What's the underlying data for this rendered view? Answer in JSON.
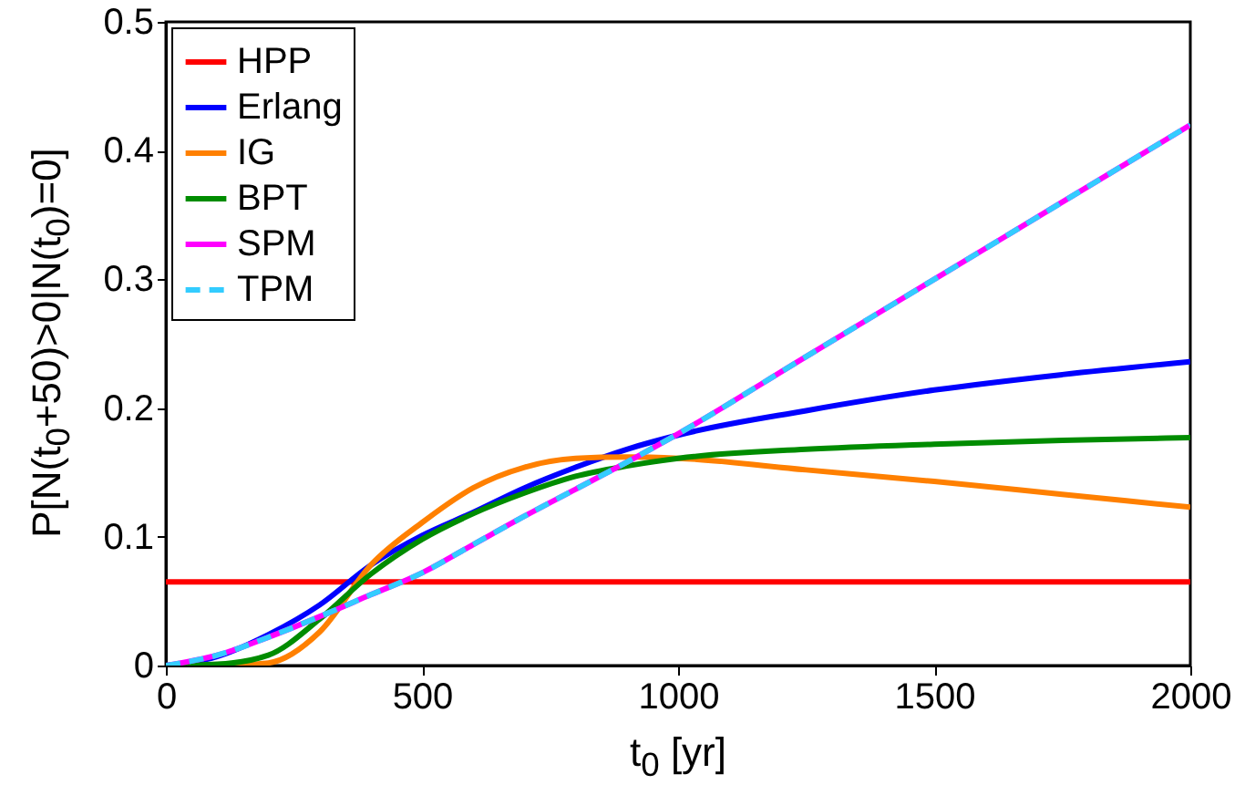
{
  "chart_data": {
    "type": "line",
    "xlabel": "t$_{0}$ [yr]",
    "ylabel": "P[N(t$_{0}$+50)>0|N(t$_{0}$)=0]",
    "x": [
      0,
      100,
      200,
      300,
      400,
      500,
      600,
      700,
      800,
      900,
      1000,
      1250,
      1500,
      1750,
      2000
    ],
    "xlim": [
      0,
      2000
    ],
    "xticks": [
      0,
      500,
      1000,
      1500,
      2000
    ],
    "ylim": [
      0,
      0.5
    ],
    "yticks": [
      0,
      0.1,
      0.2,
      0.3,
      0.4,
      0.5
    ],
    "legend": "top left",
    "series": [
      {
        "name": "HPP",
        "color": "#ff0000",
        "values": [
          0.065,
          0.065,
          0.065,
          0.065,
          0.065,
          0.065,
          0.065,
          0.065,
          0.065,
          0.065,
          0.065,
          0.065,
          0.065,
          0.065,
          0.065
        ]
      },
      {
        "name": "Erlang",
        "color": "#0000ff",
        "values": [
          0,
          0.007,
          0.024,
          0.047,
          0.078,
          0.101,
          0.119,
          0.138,
          0.154,
          0.168,
          0.179,
          0.198,
          0.214,
          0.226,
          0.236
        ]
      },
      {
        "name": "IG",
        "color": "#ff8000",
        "values": [
          0,
          0,
          0.002,
          0.026,
          0.078,
          0.111,
          0.138,
          0.154,
          0.161,
          0.162,
          0.161,
          0.152,
          0.143,
          0.133,
          0.123
        ]
      },
      {
        "name": "BPT",
        "color": "#008c00",
        "values": [
          0,
          0.001,
          0.008,
          0.036,
          0.071,
          0.098,
          0.118,
          0.134,
          0.147,
          0.155,
          0.161,
          0.168,
          0.172,
          0.175,
          0.177
        ]
      },
      {
        "name": "SPM",
        "color": "#ff00ff",
        "values": [
          0,
          0.008,
          0.022,
          0.038,
          0.055,
          0.072,
          0.094,
          0.116,
          0.137,
          0.158,
          0.18,
          0.24,
          0.3,
          0.36,
          0.42
        ]
      },
      {
        "name": "TPM",
        "color": "#33ccff",
        "line_style": "dashed",
        "values": [
          0,
          0.008,
          0.022,
          0.038,
          0.055,
          0.072,
          0.094,
          0.116,
          0.137,
          0.158,
          0.18,
          0.24,
          0.3,
          0.36,
          0.42
        ]
      }
    ]
  }
}
